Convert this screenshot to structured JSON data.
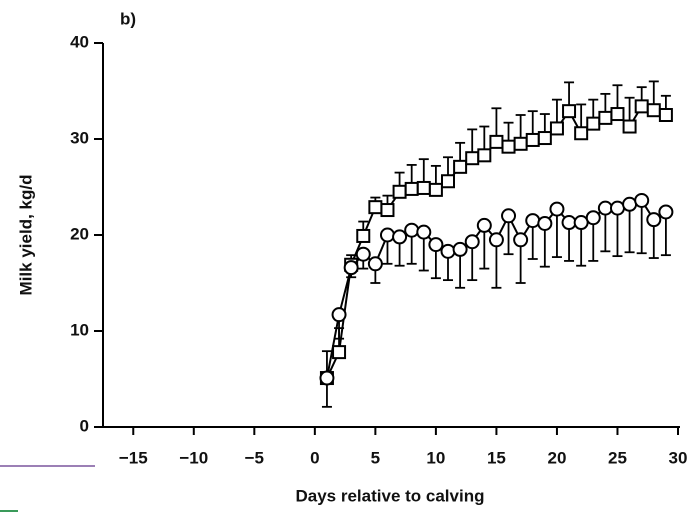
{
  "chart_data": {
    "type": "line",
    "title": "b)",
    "x_label": "Days relative to calving",
    "y_label": "Milk yield, kg/d",
    "x": [
      1,
      2,
      3,
      4,
      5,
      6,
      7,
      8,
      9,
      10,
      11,
      12,
      13,
      14,
      15,
      16,
      17,
      18,
      19,
      20,
      21,
      22,
      23,
      24,
      25,
      26,
      27,
      28,
      29
    ],
    "series": [
      {
        "color": "#000000",
        "marker": "square",
        "error_direction": "up",
        "values": [
          5.1,
          7.8,
          16.9,
          19.9,
          22.9,
          22.6,
          24.5,
          24.8,
          24.9,
          24.7,
          25.6,
          27.1,
          28.0,
          28.3,
          29.7,
          29.2,
          29.5,
          29.9,
          30.1,
          31.1,
          32.9,
          30.6,
          31.6,
          32.2,
          32.6,
          31.3,
          33.4,
          33.0,
          32.5
        ],
        "errors": [
          2.8,
          2.5,
          1.0,
          1.5,
          1.0,
          1.5,
          2.0,
          2.5,
          3.0,
          2.5,
          2.5,
          2.5,
          3.0,
          3.0,
          3.5,
          2.5,
          3.0,
          3.0,
          2.5,
          3.0,
          3.0,
          3.0,
          2.5,
          2.5,
          3.0,
          3.0,
          2.0,
          3.0,
          2.0
        ]
      },
      {
        "color": "#000000",
        "marker": "circle",
        "error_direction": "down",
        "values": [
          5.1,
          11.7,
          16.6,
          18.0,
          17.0,
          20.0,
          19.8,
          20.5,
          20.3,
          19.0,
          18.3,
          18.5,
          19.3,
          21.0,
          19.5,
          22.0,
          19.5,
          21.5,
          21.2,
          22.7,
          21.3,
          21.3,
          21.8,
          22.8,
          22.8,
          23.2,
          23.6,
          21.6,
          22.4
        ],
        "errors": [
          3.0,
          2.5,
          1.0,
          1.5,
          2.0,
          3.0,
          3.0,
          3.5,
          4.0,
          3.5,
          3.0,
          4.0,
          4.0,
          4.5,
          5.0,
          4.0,
          4.5,
          4.0,
          4.5,
          5.0,
          4.0,
          4.5,
          4.5,
          4.5,
          5.0,
          5.0,
          5.5,
          4.0,
          4.5
        ]
      }
    ],
    "xlim": [
      -17.5,
      30
    ],
    "xticks": [
      {
        "value": -15,
        "label": "−15"
      },
      {
        "value": -10,
        "label": "−10"
      },
      {
        "value": -5,
        "label": "−5"
      },
      0,
      5,
      10,
      15,
      20,
      25,
      30
    ],
    "ylim": [
      0,
      40
    ],
    "yticks": [
      0,
      10,
      20,
      30,
      40
    ]
  }
}
